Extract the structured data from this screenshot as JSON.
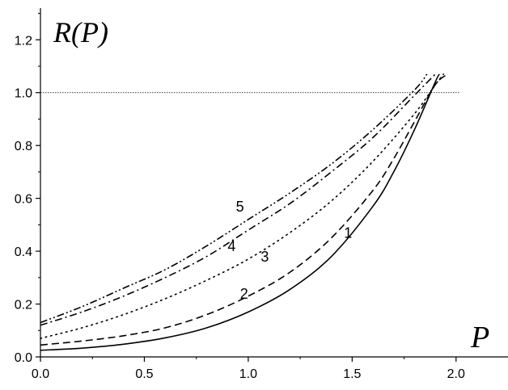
{
  "chart_data": {
    "type": "line",
    "xlabel": "P",
    "ylabel": "R(P)",
    "xlim": [
      0.0,
      2.25
    ],
    "ylim": [
      0.0,
      1.32
    ],
    "xticks": [
      "0.0",
      "0.5",
      "1.0",
      "1.5",
      "2.0"
    ],
    "yticks": [
      "0.0",
      "0.2",
      "0.4",
      "0.6",
      "0.8",
      "1.0",
      "1.2"
    ],
    "grid": false,
    "reference_line": {
      "y": 1.0,
      "x_range": [
        0.0,
        2.02
      ],
      "style": "dotted-thin"
    },
    "series": [
      {
        "name": "1",
        "style": "solid",
        "x": [
          0.0,
          0.2,
          0.4,
          0.6,
          0.8,
          1.0,
          1.2,
          1.4,
          1.6,
          1.7,
          1.8,
          1.9,
          1.92
        ],
        "y": [
          0.025,
          0.033,
          0.048,
          0.072,
          0.11,
          0.17,
          0.255,
          0.38,
          0.57,
          0.7,
          0.86,
          1.04,
          1.07
        ],
        "label_at": [
          1.48,
          0.45
        ]
      },
      {
        "name": "2",
        "style": "dashed",
        "x": [
          0.0,
          0.2,
          0.4,
          0.6,
          0.8,
          1.0,
          1.2,
          1.4,
          1.6,
          1.7,
          1.8,
          1.9,
          1.96
        ],
        "y": [
          0.045,
          0.06,
          0.08,
          0.11,
          0.16,
          0.23,
          0.32,
          0.45,
          0.63,
          0.75,
          0.89,
          1.03,
          1.07
        ],
        "label_at": [
          0.98,
          0.22
        ]
      },
      {
        "name": "3",
        "style": "dotted",
        "x": [
          0.0,
          0.2,
          0.4,
          0.6,
          0.8,
          1.0,
          1.2,
          1.4,
          1.6,
          1.8,
          1.9,
          1.94
        ],
        "y": [
          0.07,
          0.11,
          0.16,
          0.22,
          0.29,
          0.37,
          0.47,
          0.59,
          0.74,
          0.92,
          1.03,
          1.07
        ],
        "label_at": [
          1.08,
          0.36
        ]
      },
      {
        "name": "4",
        "style": "dash-dot",
        "x": [
          0.0,
          0.2,
          0.4,
          0.6,
          0.8,
          1.0,
          1.2,
          1.4,
          1.6,
          1.8,
          1.85,
          1.9
        ],
        "y": [
          0.12,
          0.17,
          0.23,
          0.3,
          0.38,
          0.48,
          0.58,
          0.7,
          0.83,
          0.99,
          1.03,
          1.07
        ],
        "label_at": [
          0.92,
          0.4
        ]
      },
      {
        "name": "5",
        "style": "dash-dot-dot",
        "x": [
          0.0,
          0.2,
          0.4,
          0.6,
          0.8,
          1.0,
          1.2,
          1.4,
          1.6,
          1.8,
          1.86
        ],
        "y": [
          0.13,
          0.19,
          0.26,
          0.33,
          0.42,
          0.52,
          0.62,
          0.73,
          0.86,
          1.01,
          1.07
        ],
        "label_at": [
          0.96,
          0.55
        ]
      }
    ]
  }
}
